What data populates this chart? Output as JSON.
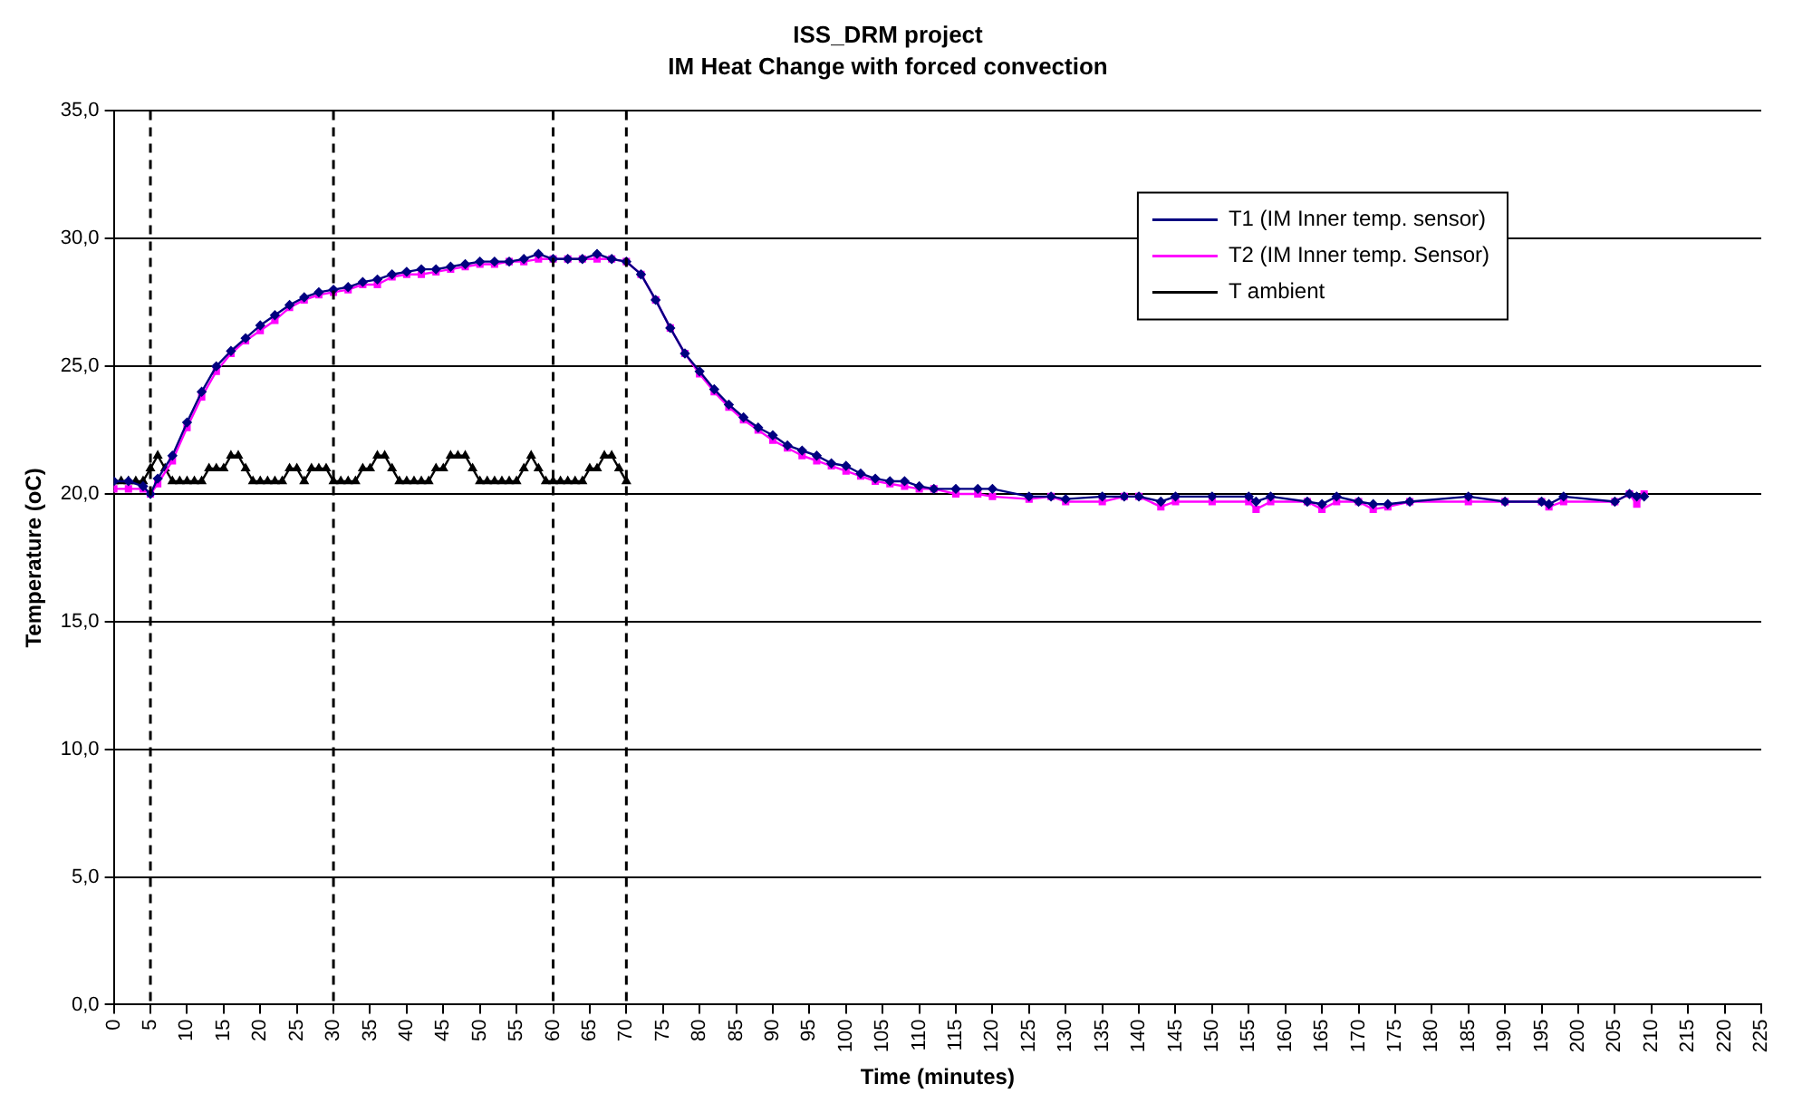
{
  "chart_data": {
    "type": "line",
    "title": "ISS_DRM project",
    "subtitle": "IM Heat Change with forced convection",
    "xlabel": "Time (minutes)",
    "ylabel": "Temperature (oC)",
    "x": [
      0,
      2,
      4,
      5,
      6,
      8,
      10,
      12,
      14,
      16,
      18,
      20,
      22,
      24,
      26,
      28,
      30,
      32,
      34,
      36,
      38,
      40,
      42,
      44,
      46,
      48,
      50,
      52,
      54,
      56,
      58,
      60,
      62,
      64,
      66,
      68,
      70,
      72,
      74,
      76,
      78,
      80,
      82,
      84,
      86,
      88,
      90,
      92,
      94,
      96,
      98,
      100,
      102,
      104,
      106,
      108,
      110,
      112,
      115,
      118,
      120,
      125,
      128,
      130,
      135,
      138,
      140,
      143,
      145,
      150,
      155,
      156,
      158,
      163,
      165,
      167,
      170,
      172,
      174,
      177,
      185,
      190,
      195,
      196,
      198,
      205,
      207,
      208,
      209
    ],
    "series": [
      {
        "name": "T1 (IM Inner temp. sensor)",
        "color": "#000080",
        "marker": "diamond",
        "values": [
          20.5,
          20.5,
          20.3,
          20.0,
          20.6,
          21.5,
          22.8,
          24.0,
          25.0,
          25.6,
          26.1,
          26.6,
          27.0,
          27.4,
          27.7,
          27.9,
          28.0,
          28.1,
          28.3,
          28.4,
          28.6,
          28.7,
          28.8,
          28.8,
          28.9,
          29.0,
          29.1,
          29.1,
          29.1,
          29.2,
          29.4,
          29.2,
          29.2,
          29.2,
          29.4,
          29.2,
          29.1,
          28.6,
          27.6,
          26.5,
          25.5,
          24.8,
          24.1,
          23.5,
          23.0,
          22.6,
          22.3,
          21.9,
          21.7,
          21.5,
          21.2,
          21.1,
          20.8,
          20.6,
          20.5,
          20.5,
          20.3,
          20.2,
          20.2,
          20.2,
          20.2,
          19.9,
          19.9,
          19.8,
          19.9,
          19.9,
          19.9,
          19.7,
          19.9,
          19.9,
          19.9,
          19.7,
          19.9,
          19.7,
          19.6,
          19.9,
          19.7,
          19.6,
          19.6,
          19.7,
          19.9,
          19.7,
          19.7,
          19.6,
          19.9,
          19.7,
          20.0,
          19.9,
          19.9
        ]
      },
      {
        "name": "T2 (IM Inner temp. Sensor)",
        "color": "#ff00ff",
        "marker": "square",
        "values": [
          20.2,
          20.2,
          20.2,
          20.0,
          20.4,
          21.3,
          22.6,
          23.8,
          24.8,
          25.5,
          26.0,
          26.4,
          26.8,
          27.3,
          27.6,
          27.8,
          27.9,
          28.0,
          28.2,
          28.2,
          28.5,
          28.6,
          28.6,
          28.7,
          28.8,
          28.9,
          29.0,
          29.0,
          29.1,
          29.1,
          29.2,
          29.2,
          29.2,
          29.2,
          29.2,
          29.2,
          29.1,
          28.6,
          27.6,
          26.5,
          25.5,
          24.7,
          24.0,
          23.4,
          22.9,
          22.5,
          22.1,
          21.8,
          21.5,
          21.3,
          21.1,
          20.9,
          20.7,
          20.5,
          20.4,
          20.3,
          20.2,
          20.2,
          20.0,
          20.0,
          19.9,
          19.8,
          19.9,
          19.7,
          19.7,
          19.9,
          19.9,
          19.5,
          19.7,
          19.7,
          19.7,
          19.4,
          19.7,
          19.7,
          19.4,
          19.7,
          19.7,
          19.4,
          19.5,
          19.7,
          19.7,
          19.7,
          19.7,
          19.5,
          19.7,
          19.7,
          20.0,
          19.6,
          20.0
        ]
      },
      {
        "name": "T ambient",
        "color": "#000000",
        "marker": "triangle",
        "x": [
          0,
          1,
          2,
          3,
          4,
          5,
          6,
          7,
          8,
          9,
          10,
          11,
          12,
          13,
          14,
          15,
          16,
          17,
          18,
          19,
          20,
          21,
          22,
          23,
          24,
          25,
          26,
          27,
          28,
          29,
          30,
          31,
          32,
          33,
          34,
          35,
          36,
          37,
          38,
          39,
          40,
          41,
          42,
          43,
          44,
          45,
          46,
          47,
          48,
          49,
          50,
          51,
          52,
          53,
          54,
          55,
          56,
          57,
          58,
          59,
          60,
          61,
          62,
          63,
          64,
          65,
          66,
          67,
          68,
          69,
          70
        ],
        "values": [
          20.5,
          20.5,
          20.5,
          20.5,
          20.5,
          21.0,
          21.5,
          21.0,
          20.5,
          20.5,
          20.5,
          20.5,
          20.5,
          21.0,
          21.0,
          21.0,
          21.5,
          21.5,
          21.0,
          20.5,
          20.5,
          20.5,
          20.5,
          20.5,
          21.0,
          21.0,
          20.5,
          21.0,
          21.0,
          21.0,
          20.5,
          20.5,
          20.5,
          20.5,
          21.0,
          21.0,
          21.5,
          21.5,
          21.0,
          20.5,
          20.5,
          20.5,
          20.5,
          20.5,
          21.0,
          21.0,
          21.5,
          21.5,
          21.5,
          21.0,
          20.5,
          20.5,
          20.5,
          20.5,
          20.5,
          20.5,
          21.0,
          21.5,
          21.0,
          20.5,
          20.5,
          20.5,
          20.5,
          20.5,
          20.5,
          21.0,
          21.0,
          21.5,
          21.5,
          21.0,
          20.5
        ]
      }
    ],
    "xlim": [
      0,
      225
    ],
    "xticks": [
      0,
      5,
      10,
      15,
      20,
      25,
      30,
      35,
      40,
      45,
      50,
      55,
      60,
      65,
      70,
      75,
      80,
      85,
      90,
      95,
      100,
      105,
      110,
      115,
      120,
      125,
      130,
      135,
      140,
      145,
      150,
      155,
      160,
      165,
      170,
      175,
      180,
      185,
      190,
      195,
      200,
      205,
      210,
      215,
      220,
      225
    ],
    "ylim": [
      0,
      35
    ],
    "yticks": [
      {
        "value": 0,
        "label": "0,0"
      },
      {
        "value": 5,
        "label": "5,0"
      },
      {
        "value": 10,
        "label": "10,0"
      },
      {
        "value": 15,
        "label": "15,0"
      },
      {
        "value": 20,
        "label": "20,0"
      },
      {
        "value": 25,
        "label": "25,0"
      },
      {
        "value": 30,
        "label": "30,0"
      },
      {
        "value": 35,
        "label": "35,0"
      }
    ],
    "grid": "y",
    "legend": "top right",
    "line_style": "solid",
    "ref_lines": [
      {
        "axis": "x",
        "value": 5,
        "color": "#000000",
        "line_style": "dashed"
      },
      {
        "axis": "x",
        "value": 30,
        "color": "#000000",
        "line_style": "dashed"
      },
      {
        "axis": "x",
        "value": 60,
        "color": "#000000",
        "line_style": "dashed"
      },
      {
        "axis": "x",
        "value": 70,
        "color": "#000000",
        "line_style": "dashed"
      }
    ]
  }
}
